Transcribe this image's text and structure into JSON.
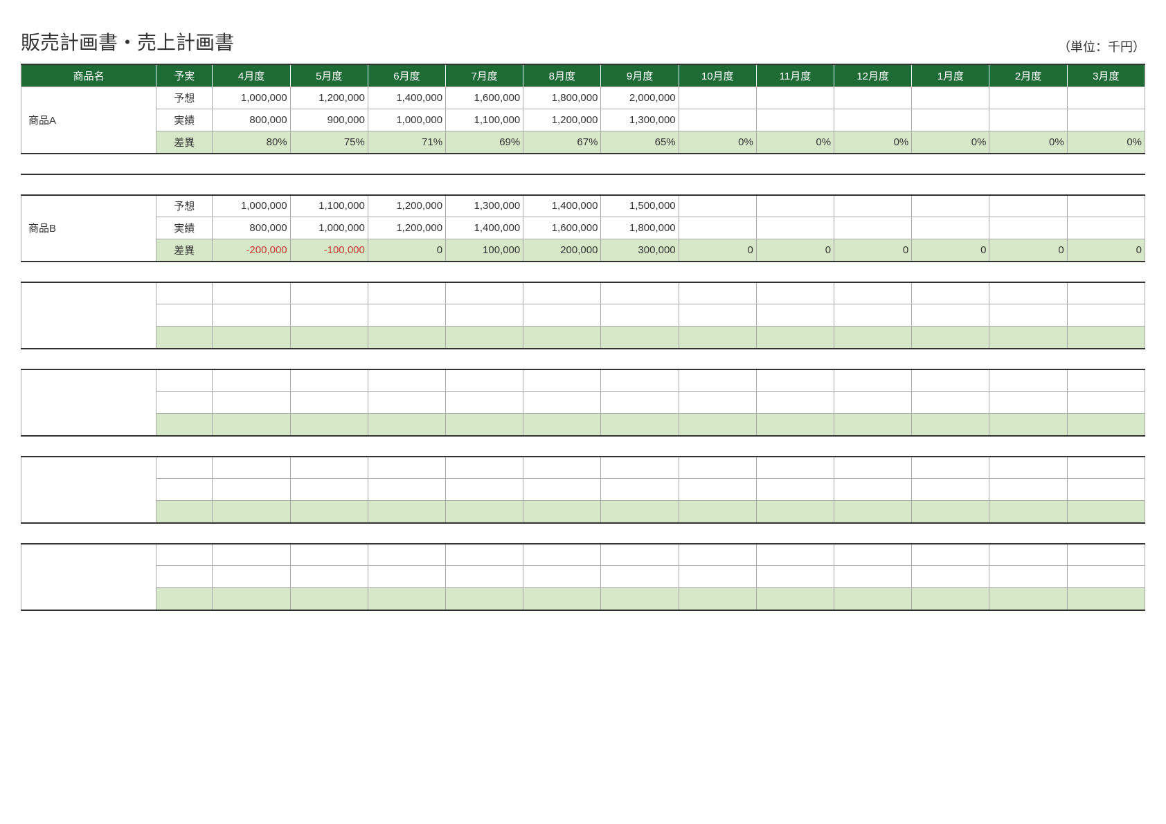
{
  "title": "販売計画書・売上計画書",
  "unit": "（単位：千円）",
  "colors": {
    "header_bg": "#1e6b35",
    "header_fg": "#ffffff",
    "diff_bg": "#d7e8c8",
    "negative": "#cc3333",
    "border": "#aaaaaa",
    "border_heavy": "#333333",
    "page_bg": "#ffffff",
    "text": "#333333"
  },
  "columns": [
    "商品名",
    "予実",
    "4月度",
    "5月度",
    "6月度",
    "7月度",
    "8月度",
    "9月度",
    "10月度",
    "11月度",
    "12月度",
    "1月度",
    "2月度",
    "3月度"
  ],
  "row_types": {
    "forecast": "予想",
    "actual": "実績",
    "diff": "差異"
  },
  "products": [
    {
      "name": "商品A",
      "forecast": [
        "1,000,000",
        "1,200,000",
        "1,400,000",
        "1,600,000",
        "1,800,000",
        "2,000,000",
        "",
        "",
        "",
        "",
        "",
        ""
      ],
      "actual": [
        "800,000",
        "900,000",
        "1,000,000",
        "1,100,000",
        "1,200,000",
        "1,300,000",
        "",
        "",
        "",
        "",
        "",
        ""
      ],
      "diff": [
        {
          "v": "80%",
          "neg": false
        },
        {
          "v": "75%",
          "neg": false
        },
        {
          "v": "71%",
          "neg": false
        },
        {
          "v": "69%",
          "neg": false
        },
        {
          "v": "67%",
          "neg": false
        },
        {
          "v": "65%",
          "neg": false
        },
        {
          "v": "0%",
          "neg": false
        },
        {
          "v": "0%",
          "neg": false
        },
        {
          "v": "0%",
          "neg": false
        },
        {
          "v": "0%",
          "neg": false
        },
        {
          "v": "0%",
          "neg": false
        },
        {
          "v": "0%",
          "neg": false
        }
      ]
    },
    {
      "name": "商品B",
      "forecast": [
        "1,000,000",
        "1,100,000",
        "1,200,000",
        "1,300,000",
        "1,400,000",
        "1,500,000",
        "",
        "",
        "",
        "",
        "",
        ""
      ],
      "actual": [
        "800,000",
        "1,000,000",
        "1,200,000",
        "1,400,000",
        "1,600,000",
        "1,800,000",
        "",
        "",
        "",
        "",
        "",
        ""
      ],
      "diff": [
        {
          "v": "-200,000",
          "neg": true
        },
        {
          "v": "-100,000",
          "neg": true
        },
        {
          "v": "0",
          "neg": false
        },
        {
          "v": "100,000",
          "neg": false
        },
        {
          "v": "200,000",
          "neg": false
        },
        {
          "v": "300,000",
          "neg": false
        },
        {
          "v": "0",
          "neg": false
        },
        {
          "v": "0",
          "neg": false
        },
        {
          "v": "0",
          "neg": false
        },
        {
          "v": "0",
          "neg": false
        },
        {
          "v": "0",
          "neg": false
        },
        {
          "v": "0",
          "neg": false
        }
      ]
    },
    {
      "name": "",
      "forecast": [
        "",
        "",
        "",
        "",
        "",
        "",
        "",
        "",
        "",
        "",
        "",
        ""
      ],
      "actual": [
        "",
        "",
        "",
        "",
        "",
        "",
        "",
        "",
        "",
        "",
        "",
        ""
      ],
      "diff": [
        {
          "v": "",
          "neg": false
        },
        {
          "v": "",
          "neg": false
        },
        {
          "v": "",
          "neg": false
        },
        {
          "v": "",
          "neg": false
        },
        {
          "v": "",
          "neg": false
        },
        {
          "v": "",
          "neg": false
        },
        {
          "v": "",
          "neg": false
        },
        {
          "v": "",
          "neg": false
        },
        {
          "v": "",
          "neg": false
        },
        {
          "v": "",
          "neg": false
        },
        {
          "v": "",
          "neg": false
        },
        {
          "v": "",
          "neg": false
        }
      ]
    },
    {
      "name": "",
      "forecast": [
        "",
        "",
        "",
        "",
        "",
        "",
        "",
        "",
        "",
        "",
        "",
        ""
      ],
      "actual": [
        "",
        "",
        "",
        "",
        "",
        "",
        "",
        "",
        "",
        "",
        "",
        ""
      ],
      "diff": [
        {
          "v": "",
          "neg": false
        },
        {
          "v": "",
          "neg": false
        },
        {
          "v": "",
          "neg": false
        },
        {
          "v": "",
          "neg": false
        },
        {
          "v": "",
          "neg": false
        },
        {
          "v": "",
          "neg": false
        },
        {
          "v": "",
          "neg": false
        },
        {
          "v": "",
          "neg": false
        },
        {
          "v": "",
          "neg": false
        },
        {
          "v": "",
          "neg": false
        },
        {
          "v": "",
          "neg": false
        },
        {
          "v": "",
          "neg": false
        }
      ]
    },
    {
      "name": "",
      "forecast": [
        "",
        "",
        "",
        "",
        "",
        "",
        "",
        "",
        "",
        "",
        "",
        ""
      ],
      "actual": [
        "",
        "",
        "",
        "",
        "",
        "",
        "",
        "",
        "",
        "",
        "",
        ""
      ],
      "diff": [
        {
          "v": "",
          "neg": false
        },
        {
          "v": "",
          "neg": false
        },
        {
          "v": "",
          "neg": false
        },
        {
          "v": "",
          "neg": false
        },
        {
          "v": "",
          "neg": false
        },
        {
          "v": "",
          "neg": false
        },
        {
          "v": "",
          "neg": false
        },
        {
          "v": "",
          "neg": false
        },
        {
          "v": "",
          "neg": false
        },
        {
          "v": "",
          "neg": false
        },
        {
          "v": "",
          "neg": false
        },
        {
          "v": "",
          "neg": false
        }
      ]
    },
    {
      "name": "",
      "forecast": [
        "",
        "",
        "",
        "",
        "",
        "",
        "",
        "",
        "",
        "",
        "",
        ""
      ],
      "actual": [
        "",
        "",
        "",
        "",
        "",
        "",
        "",
        "",
        "",
        "",
        "",
        ""
      ],
      "diff": [
        {
          "v": "",
          "neg": false
        },
        {
          "v": "",
          "neg": false
        },
        {
          "v": "",
          "neg": false
        },
        {
          "v": "",
          "neg": false
        },
        {
          "v": "",
          "neg": false
        },
        {
          "v": "",
          "neg": false
        },
        {
          "v": "",
          "neg": false
        },
        {
          "v": "",
          "neg": false
        },
        {
          "v": "",
          "neg": false
        },
        {
          "v": "",
          "neg": false
        },
        {
          "v": "",
          "neg": false
        },
        {
          "v": "",
          "neg": false
        }
      ]
    }
  ]
}
